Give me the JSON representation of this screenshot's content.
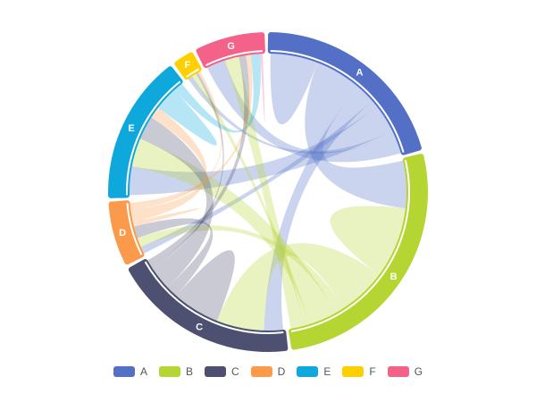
{
  "chart_data": {
    "type": "chord",
    "groups": [
      "A",
      "B",
      "C",
      "D",
      "E",
      "F",
      "G"
    ],
    "colors": [
      "#5470c6",
      "#b5d532",
      "#4d5070",
      "#fc9a4c",
      "#0ea8dd",
      "#ffd000",
      "#f4628a"
    ],
    "matrix": [
      [
        20,
        20,
        8,
        3,
        12,
        2,
        8
      ],
      [
        20,
        30,
        20,
        4,
        12,
        2,
        6
      ],
      [
        8,
        20,
        20,
        5,
        10,
        1,
        3
      ],
      [
        3,
        4,
        5,
        2,
        5,
        1,
        2
      ],
      [
        12,
        12,
        10,
        5,
        10,
        0,
        4
      ],
      [
        2,
        2,
        1,
        1,
        0,
        0,
        0
      ],
      [
        8,
        6,
        3,
        2,
        4,
        0,
        1
      ]
    ],
    "legend": {
      "position": "bottom",
      "items": [
        "A",
        "B",
        "C",
        "D",
        "E",
        "F",
        "G"
      ]
    }
  }
}
